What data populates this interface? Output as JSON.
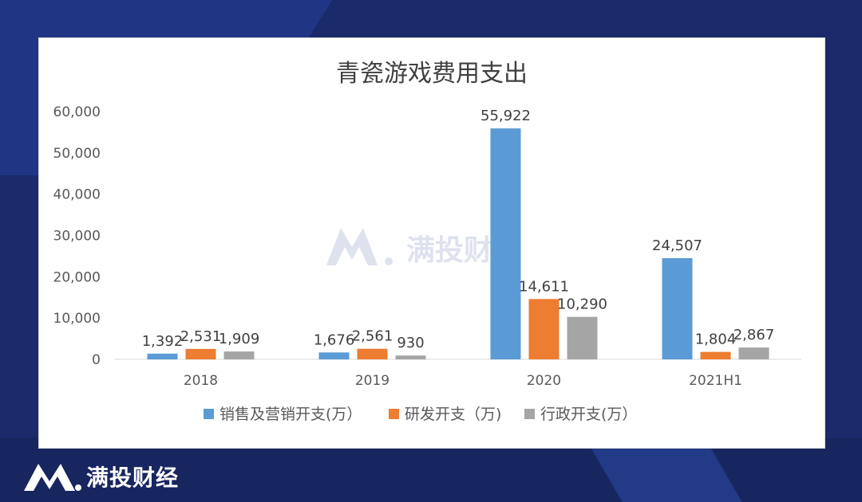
{
  "colors": {
    "background": "#1a2a6a",
    "series_blue": "#5b9bd5",
    "series_orange": "#ed7d31",
    "series_gray": "#a5a5a5"
  },
  "brand": {
    "name": "满投财经",
    "icon": "mantou-logo-icon"
  },
  "watermark": {
    "text": "满投财经",
    "icon": "mantou-logo-icon"
  },
  "chart_data": {
    "type": "bar",
    "title": "青瓷游戏费用支出",
    "xlabel": "",
    "ylabel": "",
    "categories": [
      "2018",
      "2019",
      "2020",
      "2021H1"
    ],
    "ylim": [
      0,
      60000
    ],
    "yticks": [
      0,
      10000,
      20000,
      30000,
      40000,
      50000,
      60000
    ],
    "ytick_labels": [
      "0",
      "10,000",
      "20,000",
      "30,000",
      "40,000",
      "50,000",
      "60,000"
    ],
    "grid": false,
    "legend_position": "bottom",
    "series": [
      {
        "name": "销售及营销开支(万）",
        "color": "#5b9bd5",
        "values": [
          1392,
          1676,
          55922,
          24507
        ],
        "labels": [
          "1,392",
          "1,676",
          "55,922",
          "24,507"
        ]
      },
      {
        "name": "研发开支（万)",
        "color": "#ed7d31",
        "values": [
          2531,
          2561,
          14611,
          1804
        ],
        "labels": [
          "2,531",
          "2,561",
          "14,611",
          "1,804"
        ]
      },
      {
        "name": "行政开支(万）",
        "color": "#a5a5a5",
        "values": [
          1909,
          930,
          10290,
          2867
        ],
        "labels": [
          "1,909",
          "930",
          "10,290",
          "2,867"
        ]
      }
    ]
  }
}
